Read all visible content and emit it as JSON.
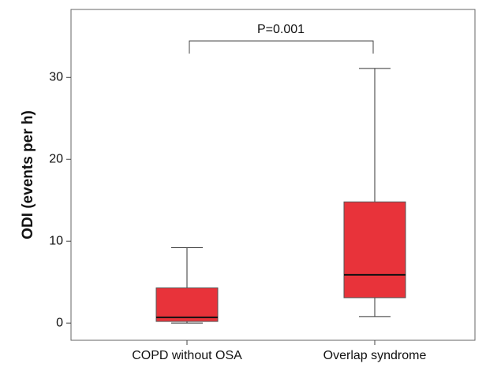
{
  "chart_data": {
    "type": "box",
    "ylabel": "ODI (events per h)",
    "categories": [
      "COPD without OSA",
      "Overlap syndrome"
    ],
    "boxes": [
      {
        "min": 0,
        "q1": 0.2,
        "median": 0.7,
        "q3": 4.3,
        "max": 9.2
      },
      {
        "min": 0.8,
        "q1": 3.1,
        "median": 5.9,
        "q3": 14.8,
        "max": 31.1
      }
    ],
    "color": "#e8333a",
    "ylim": [
      -2.1,
      38.3
    ],
    "yticks": [
      0,
      10,
      20,
      30
    ],
    "annotation": "P=0.001"
  }
}
